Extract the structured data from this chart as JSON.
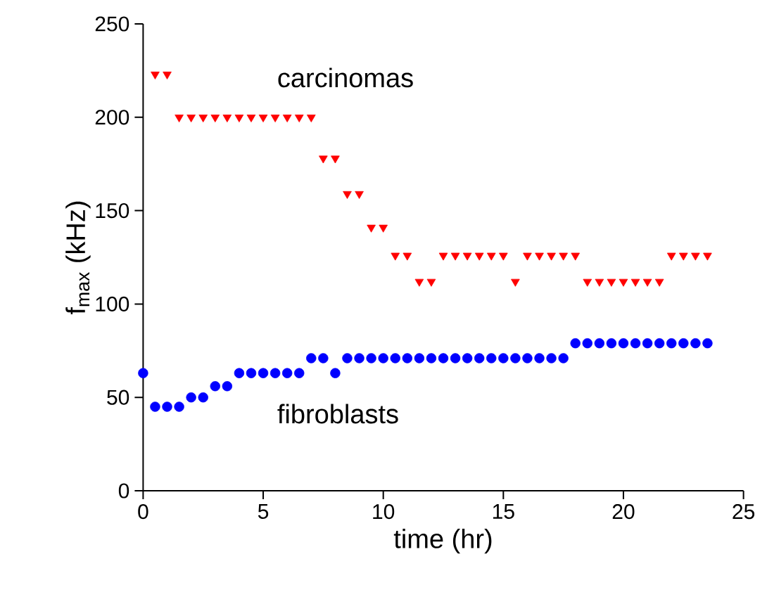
{
  "chart_data": {
    "type": "scatter",
    "xlabel": "time (hr)",
    "ylabel": "f$_{max}$ (kHz)",
    "xlim": [
      0,
      25
    ],
    "ylim": [
      0,
      250
    ],
    "xticks": [
      0,
      5,
      10,
      15,
      20,
      25
    ],
    "yticks": [
      0,
      50,
      100,
      150,
      200,
      250
    ],
    "grid": false,
    "legend": false,
    "series": [
      {
        "name": "carcinomas",
        "color": "#ff0000",
        "marker": "triangle",
        "x": [
          0.5,
          1,
          1.5,
          2,
          2.5,
          3,
          3.5,
          4,
          4.5,
          5,
          5.5,
          6,
          6.5,
          7,
          7.5,
          8,
          8.5,
          9,
          9.5,
          10,
          10.5,
          11,
          11.5,
          12,
          12.5,
          13,
          13.5,
          14,
          14.5,
          15,
          15.5,
          16,
          16.5,
          17,
          17.5,
          18,
          18.5,
          19,
          19.5,
          20,
          20.5,
          21,
          21.5,
          22,
          22.5,
          23,
          23.5
        ],
        "values": [
          223,
          223,
          200,
          200,
          200,
          200,
          200,
          200,
          200,
          200,
          200,
          200,
          200,
          200,
          178,
          178,
          159,
          159,
          141,
          141,
          126,
          126,
          112,
          112,
          126,
          126,
          126,
          126,
          126,
          126,
          112,
          126,
          126,
          126,
          126,
          126,
          112,
          112,
          112,
          112,
          112,
          112,
          112,
          126,
          126,
          126,
          126
        ]
      },
      {
        "name": "fibroblasts",
        "color": "#0000ff",
        "marker": "circle",
        "x": [
          0,
          0.5,
          1,
          1.5,
          2,
          2.5,
          3,
          3.5,
          4,
          4.5,
          5,
          5.5,
          6,
          6.5,
          7,
          7.5,
          8,
          8.5,
          9,
          9.5,
          10,
          10.5,
          11,
          11.5,
          12,
          12.5,
          13,
          13.5,
          14,
          14.5,
          15,
          15.5,
          16,
          16.5,
          17,
          17.5,
          18,
          18.5,
          19,
          19.5,
          20,
          20.5,
          21,
          21.5,
          22,
          22.5,
          23,
          23.5
        ],
        "values": [
          63,
          45,
          45,
          45,
          50,
          50,
          56,
          56,
          63,
          63,
          63,
          63,
          63,
          63,
          71,
          71,
          63,
          71,
          71,
          71,
          71,
          71,
          71,
          71,
          71,
          71,
          71,
          71,
          71,
          71,
          71,
          71,
          71,
          71,
          71,
          71,
          79,
          79,
          79,
          79,
          79,
          79,
          79,
          79,
          79,
          79,
          79,
          79
        ]
      }
    ]
  }
}
